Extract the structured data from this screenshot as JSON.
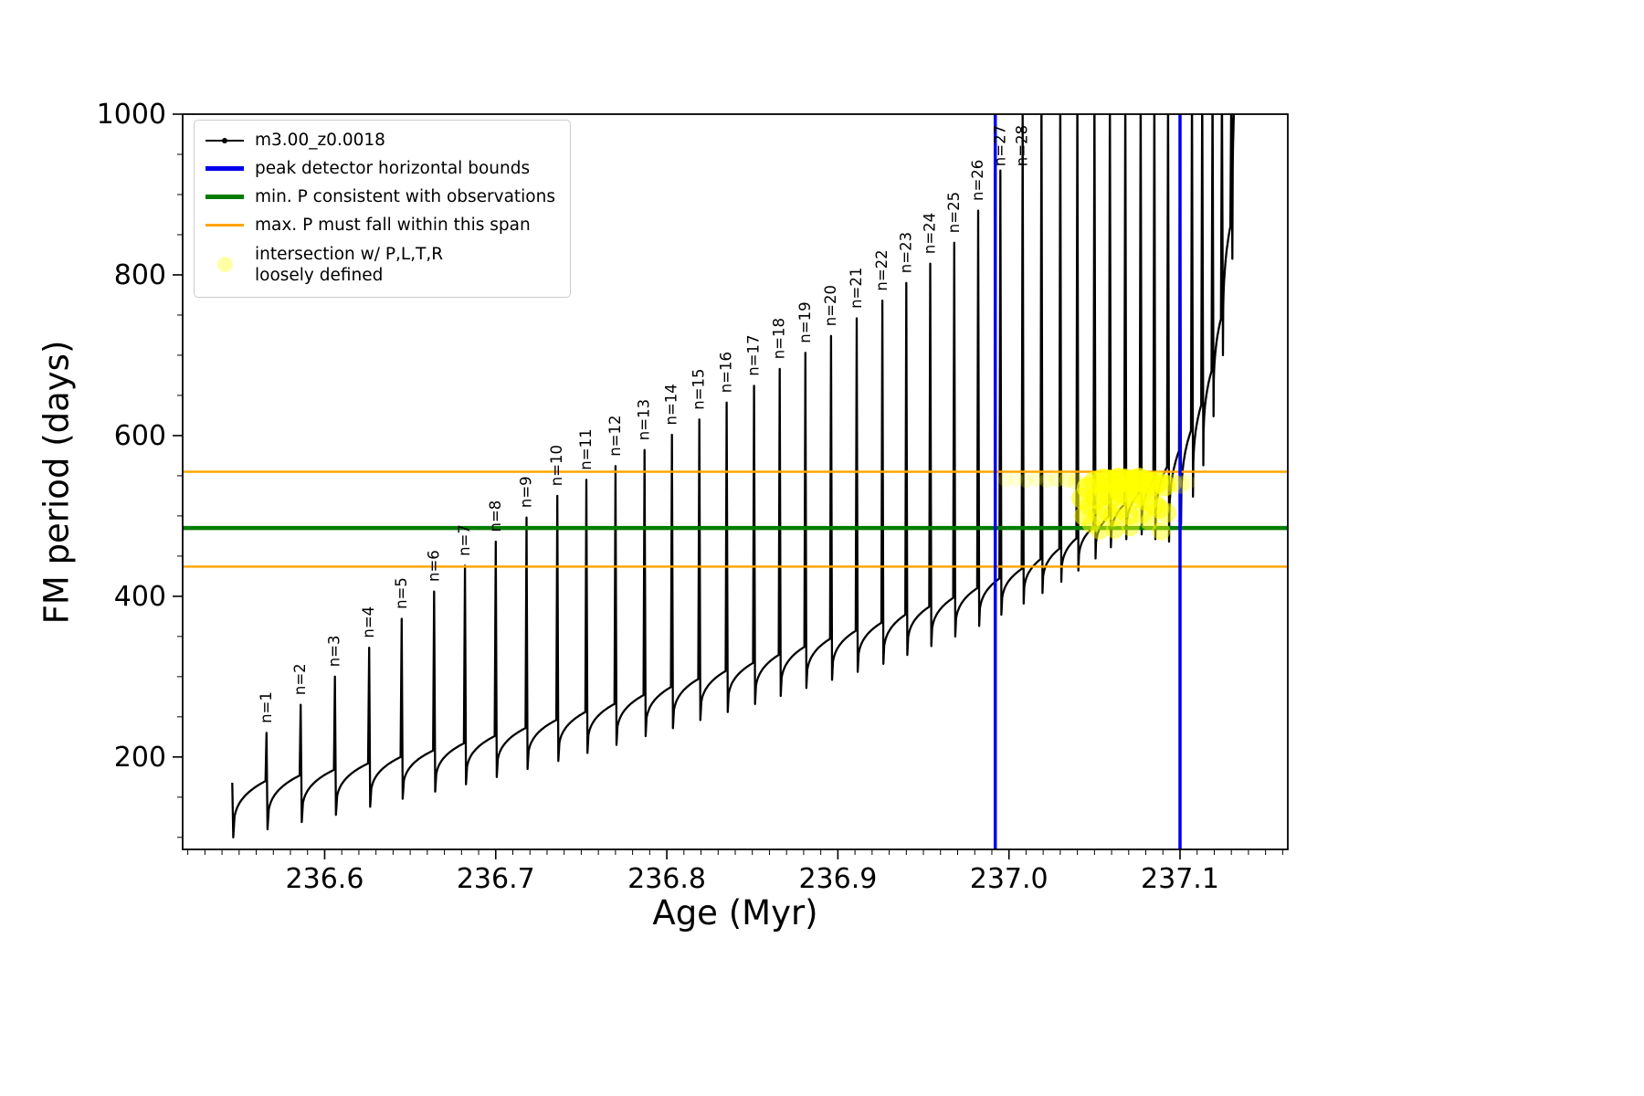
{
  "chart_data": {
    "type": "line",
    "title": "",
    "xlabel": "Age (Myr)",
    "ylabel": "FM period (days)",
    "xlim": [
      236.517,
      237.163
    ],
    "ylim": [
      85,
      1000
    ],
    "xticks": [
      236.6,
      236.7,
      236.8,
      236.9,
      237.0,
      237.1
    ],
    "xtick_labels": [
      "236.6",
      "236.7",
      "236.8",
      "236.9",
      "237.0",
      "237.1"
    ],
    "yticks": [
      200,
      400,
      600,
      800,
      1000
    ],
    "ytick_labels": [
      "200",
      "400",
      "600",
      "800",
      "1000"
    ],
    "x_minor_step": 0.01,
    "y_minor_step": 50,
    "grid": false,
    "colors": {
      "series": "#000000",
      "bounds": "#0000ee",
      "min_p": "#007c00",
      "max_p": "#ffa500",
      "intersection": "#ffff00"
    },
    "legend": {
      "position": "upper-left",
      "entries": [
        {
          "label": "m3.00_z0.0018"
        },
        {
          "label": "peak detector horizontal bounds"
        },
        {
          "label": "min. P consistent with observations"
        },
        {
          "label": "max. P must fall within this span"
        },
        {
          "label_line1": "intersection w/ P,L,T,R",
          "label_line2": "loosely defined"
        }
      ]
    },
    "series_name": "m3.00_z0.0018",
    "vlines": [
      {
        "x": 236.992
      },
      {
        "x": 237.1
      }
    ],
    "hlines": [
      {
        "y": 555,
        "color_key": "max_p",
        "width": 2.5
      },
      {
        "y": 485,
        "color_key": "min_p",
        "width": 4.5
      },
      {
        "y": 437,
        "color_key": "max_p",
        "width": 2.5
      }
    ],
    "teeth_format": [
      "n",
      "age_at_spike_Myr",
      "pre_spike_period_days",
      "spike_peak_period_days",
      "post_spike_dip_period_days"
    ],
    "series_teeth": [
      [
        0,
        236.546,
        168,
        168,
        100
      ],
      [
        1,
        236.566,
        170,
        230,
        110
      ],
      [
        2,
        236.586,
        177,
        265,
        119
      ],
      [
        3,
        236.606,
        184,
        300,
        128
      ],
      [
        4,
        236.626,
        192,
        336,
        138
      ],
      [
        5,
        236.645,
        200,
        372,
        148
      ],
      [
        6,
        236.664,
        208,
        406,
        157
      ],
      [
        7,
        236.682,
        217,
        438,
        166
      ],
      [
        8,
        236.7,
        226,
        468,
        175
      ],
      [
        9,
        236.718,
        236,
        498,
        185
      ],
      [
        10,
        236.736,
        246,
        525,
        195
      ],
      [
        11,
        236.753,
        256,
        545,
        205
      ],
      [
        12,
        236.77,
        266,
        562,
        215
      ],
      [
        13,
        236.787,
        277,
        582,
        226
      ],
      [
        14,
        236.803,
        287,
        601,
        236
      ],
      [
        15,
        236.819,
        297,
        620,
        246
      ],
      [
        16,
        236.835,
        307,
        641,
        256
      ],
      [
        17,
        236.851,
        317,
        662,
        266
      ],
      [
        18,
        236.866,
        327,
        683,
        276
      ],
      [
        19,
        236.881,
        337,
        703,
        286
      ],
      [
        20,
        236.896,
        347,
        724,
        296
      ],
      [
        21,
        236.911,
        357,
        746,
        306
      ],
      [
        22,
        236.926,
        367,
        768,
        316
      ],
      [
        23,
        236.94,
        377,
        790,
        327
      ],
      [
        24,
        236.954,
        387,
        814,
        338
      ],
      [
        25,
        236.968,
        398,
        840,
        350
      ],
      [
        26,
        236.982,
        410,
        880,
        363
      ],
      [
        27,
        236.995,
        422,
        930,
        377
      ],
      [
        28,
        237.008,
        434,
        1005,
        391
      ],
      [
        29,
        237.019,
        446,
        1040,
        404
      ],
      [
        30,
        237.03,
        459,
        1040,
        418
      ],
      [
        31,
        237.04,
        472,
        1040,
        432
      ],
      [
        32,
        237.05,
        486,
        1040,
        447
      ],
      [
        33,
        237.059,
        500,
        1040,
        461
      ],
      [
        34,
        237.068,
        514,
        1040,
        471
      ],
      [
        35,
        237.077,
        529,
        1040,
        477
      ],
      [
        36,
        237.085,
        544,
        1040,
        471
      ],
      [
        37,
        237.093,
        561,
        1040,
        468
      ],
      [
        38,
        237.1,
        581,
        1040,
        489
      ],
      [
        39,
        237.107,
        606,
        1040,
        524
      ],
      [
        40,
        237.113,
        638,
        1040,
        563
      ],
      [
        41,
        237.119,
        680,
        1040,
        624
      ],
      [
        42,
        237.1245,
        745,
        1040,
        700
      ],
      [
        43,
        237.13,
        860,
        1040,
        820
      ],
      [
        44,
        237.136,
        1120,
        1120,
        1120
      ]
    ],
    "peak_labels": [
      "n=1",
      "n=2",
      "n=3",
      "n=4",
      "n=5",
      "n=6",
      "n=7",
      "n=8",
      "n=9",
      "n=10",
      "n=11",
      "n=12",
      "n=13",
      "n=14",
      "n=15",
      "n=16",
      "n=17",
      "n=18",
      "n=19",
      "n=20",
      "n=21",
      "n=22",
      "n=23",
      "n=24",
      "n=25",
      "n=26",
      "n=27",
      "n=28"
    ],
    "scatter_format": [
      "age_Myr",
      "period_days",
      "radius_px",
      "opacity"
    ],
    "scatter": [
      [
        236.998,
        545,
        8,
        0.15
      ],
      [
        237.004,
        546,
        8,
        0.15
      ],
      [
        237.01,
        544,
        8,
        0.18
      ],
      [
        237.016,
        546,
        8,
        0.18
      ],
      [
        237.022,
        544,
        8,
        0.2
      ],
      [
        237.028,
        546,
        9,
        0.22
      ],
      [
        237.034,
        545,
        9,
        0.25
      ],
      [
        237.039,
        543,
        9,
        0.3
      ],
      [
        237.043,
        522,
        12,
        0.6
      ],
      [
        237.044,
        500,
        11,
        0.55
      ],
      [
        237.046,
        535,
        12,
        0.65
      ],
      [
        237.047,
        512,
        11,
        0.6
      ],
      [
        237.048,
        490,
        10,
        0.55
      ],
      [
        237.05,
        542,
        12,
        0.7
      ],
      [
        237.051,
        522,
        12,
        0.7
      ],
      [
        237.052,
        502,
        11,
        0.6
      ],
      [
        237.053,
        482,
        10,
        0.5
      ],
      [
        237.055,
        544,
        13,
        0.75
      ],
      [
        237.056,
        528,
        12,
        0.7
      ],
      [
        237.057,
        506,
        11,
        0.6
      ],
      [
        237.059,
        543,
        13,
        0.75
      ],
      [
        237.06,
        524,
        12,
        0.7
      ],
      [
        237.061,
        499,
        11,
        0.6
      ],
      [
        237.062,
        483,
        10,
        0.5
      ],
      [
        237.064,
        545,
        13,
        0.8
      ],
      [
        237.065,
        530,
        12,
        0.7
      ],
      [
        237.066,
        508,
        11,
        0.6
      ],
      [
        237.068,
        544,
        13,
        0.8
      ],
      [
        237.069,
        526,
        12,
        0.7
      ],
      [
        237.07,
        501,
        11,
        0.6
      ],
      [
        237.071,
        486,
        10,
        0.5
      ],
      [
        237.073,
        543,
        13,
        0.8
      ],
      [
        237.074,
        523,
        12,
        0.65
      ],
      [
        237.076,
        545,
        13,
        0.8
      ],
      [
        237.077,
        528,
        12,
        0.65
      ],
      [
        237.078,
        503,
        11,
        0.55
      ],
      [
        237.08,
        542,
        13,
        0.75
      ],
      [
        237.081,
        519,
        12,
        0.6
      ],
      [
        237.082,
        493,
        10,
        0.5
      ],
      [
        237.084,
        540,
        13,
        0.75
      ],
      [
        237.085,
        514,
        12,
        0.6
      ],
      [
        237.087,
        542,
        12,
        0.7
      ],
      [
        237.088,
        509,
        11,
        0.55
      ],
      [
        237.089,
        481,
        10,
        0.45
      ],
      [
        237.091,
        538,
        12,
        0.6
      ],
      [
        237.092,
        504,
        11,
        0.5
      ],
      [
        237.096,
        541,
        10,
        0.3
      ],
      [
        237.1,
        539,
        10,
        0.25
      ],
      [
        237.104,
        542,
        9,
        0.18
      ]
    ]
  }
}
